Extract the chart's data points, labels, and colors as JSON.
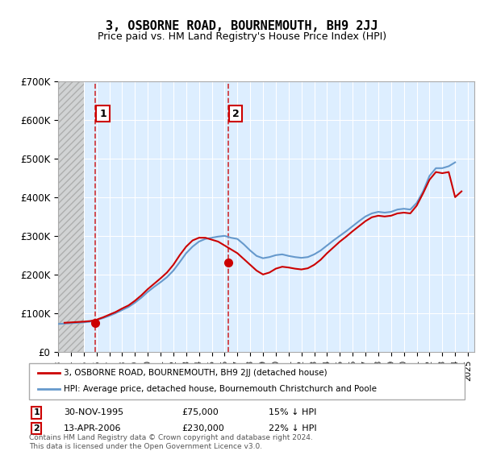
{
  "title": "3, OSBORNE ROAD, BOURNEMOUTH, BH9 2JJ",
  "subtitle": "Price paid vs. HM Land Registry's House Price Index (HPI)",
  "legend_line1": "3, OSBORNE ROAD, BOURNEMOUTH, BH9 2JJ (detached house)",
  "legend_line2": "HPI: Average price, detached house, Bournemouth Christchurch and Poole",
  "footer": "Contains HM Land Registry data © Crown copyright and database right 2024.\nThis data is licensed under the Open Government Licence v3.0.",
  "sale1_label": "1",
  "sale1_date": "30-NOV-1995",
  "sale1_price": "£75,000",
  "sale1_hpi": "15% ↓ HPI",
  "sale1_year": 1995.92,
  "sale1_value": 75000,
  "sale2_label": "2",
  "sale2_date": "13-APR-2006",
  "sale2_price": "£230,000",
  "sale2_hpi": "22% ↓ HPI",
  "sale2_year": 2006.29,
  "sale2_value": 230000,
  "hatch_end_year": 1995.0,
  "hatch_color": "#cccccc",
  "hatch_bg": "#e8e8e8",
  "plot_bg": "#ddeeff",
  "grid_color": "#ffffff",
  "red_color": "#cc0000",
  "blue_color": "#6699cc",
  "ylim": [
    0,
    700000
  ],
  "xlim_start": 1993.0,
  "xlim_end": 2025.5,
  "yticks": [
    0,
    100000,
    200000,
    300000,
    400000,
    500000,
    600000,
    700000
  ],
  "ytick_labels": [
    "£0",
    "£100K",
    "£200K",
    "£300K",
    "£400K",
    "£500K",
    "£600K",
    "£700K"
  ],
  "xticks": [
    1993,
    1994,
    1995,
    1996,
    1997,
    1998,
    1999,
    2000,
    2001,
    2002,
    2003,
    2004,
    2005,
    2006,
    2007,
    2008,
    2009,
    2010,
    2011,
    2012,
    2013,
    2014,
    2015,
    2016,
    2017,
    2018,
    2019,
    2020,
    2021,
    2022,
    2023,
    2024,
    2025
  ],
  "hpi_years": [
    1993.0,
    1993.5,
    1994.0,
    1994.5,
    1995.0,
    1995.5,
    1996.0,
    1996.5,
    1997.0,
    1997.5,
    1998.0,
    1998.5,
    1999.0,
    1999.5,
    2000.0,
    2000.5,
    2001.0,
    2001.5,
    2002.0,
    2002.5,
    2003.0,
    2003.5,
    2004.0,
    2004.5,
    2005.0,
    2005.5,
    2006.0,
    2006.5,
    2007.0,
    2007.5,
    2008.0,
    2008.5,
    2009.0,
    2009.5,
    2010.0,
    2010.5,
    2011.0,
    2011.5,
    2012.0,
    2012.5,
    2013.0,
    2013.5,
    2014.0,
    2014.5,
    2015.0,
    2015.5,
    2016.0,
    2016.5,
    2017.0,
    2017.5,
    2018.0,
    2018.5,
    2019.0,
    2019.5,
    2020.0,
    2020.5,
    2021.0,
    2021.5,
    2022.0,
    2022.5,
    2023.0,
    2023.5,
    2024.0
  ],
  "hpi_values": [
    72000,
    73000,
    74000,
    75000,
    76000,
    78000,
    82000,
    87000,
    93000,
    100000,
    108000,
    116000,
    127000,
    140000,
    155000,
    168000,
    180000,
    193000,
    210000,
    232000,
    255000,
    272000,
    285000,
    292000,
    295000,
    298000,
    300000,
    295000,
    292000,
    278000,
    262000,
    248000,
    242000,
    245000,
    250000,
    252000,
    248000,
    245000,
    243000,
    245000,
    252000,
    262000,
    275000,
    288000,
    300000,
    312000,
    325000,
    338000,
    350000,
    358000,
    362000,
    360000,
    362000,
    368000,
    370000,
    368000,
    385000,
    415000,
    455000,
    475000,
    475000,
    480000,
    490000
  ],
  "prop_years": [
    1993.5,
    1994.0,
    1994.5,
    1995.0,
    1995.5,
    1996.0,
    1996.5,
    1997.0,
    1997.5,
    1998.0,
    1998.5,
    1999.0,
    1999.5,
    2000.0,
    2000.5,
    2001.0,
    2001.5,
    2002.0,
    2002.5,
    2003.0,
    2003.5,
    2004.0,
    2004.5,
    2005.0,
    2005.5,
    2006.0,
    2006.5,
    2007.0,
    2007.5,
    2008.0,
    2008.5,
    2009.0,
    2009.5,
    2010.0,
    2010.5,
    2011.0,
    2011.5,
    2012.0,
    2012.5,
    2013.0,
    2013.5,
    2014.0,
    2014.5,
    2015.0,
    2015.5,
    2016.0,
    2016.5,
    2017.0,
    2017.5,
    2018.0,
    2018.5,
    2019.0,
    2019.5,
    2020.0,
    2020.5,
    2021.0,
    2021.5,
    2022.0,
    2022.5,
    2023.0,
    2023.5,
    2024.0,
    2024.5
  ],
  "prop_values": [
    75000,
    76000,
    77000,
    78000,
    79500,
    83000,
    89000,
    96000,
    103000,
    112000,
    120000,
    132000,
    146000,
    162000,
    176000,
    190000,
    205000,
    225000,
    250000,
    272000,
    288000,
    295000,
    295000,
    290000,
    285000,
    275000,
    265000,
    255000,
    240000,
    225000,
    210000,
    200000,
    205000,
    215000,
    220000,
    218000,
    215000,
    213000,
    216000,
    225000,
    238000,
    255000,
    270000,
    285000,
    298000,
    312000,
    325000,
    338000,
    348000,
    352000,
    350000,
    352000,
    358000,
    360000,
    358000,
    378000,
    410000,
    445000,
    465000,
    462000,
    465000,
    400000,
    415000
  ]
}
